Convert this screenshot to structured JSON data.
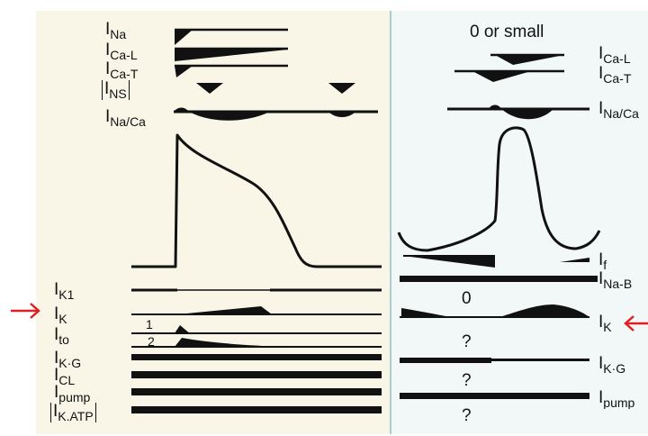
{
  "colors": {
    "ventricular_panel_bg": "#f9f6e7",
    "nodal_panel_bg": "#f2f7f8",
    "divider": "#a9cfd5",
    "trace": "#111111",
    "arrow": "#e02020"
  },
  "ventricular": {
    "currents_top": [
      {
        "id": "na",
        "letter": "I",
        "sub": "Na"
      },
      {
        "id": "cal",
        "letter": "I",
        "sub": "Ca-L"
      },
      {
        "id": "cat",
        "letter": "I",
        "sub": "Ca-T"
      },
      {
        "id": "ns",
        "letter": "I",
        "sub": "NS"
      },
      {
        "id": "naca",
        "letter": "I",
        "sub": "Na/Ca"
      }
    ],
    "currents_bottom": [
      {
        "id": "k1",
        "letter": "I",
        "sub": "K1"
      },
      {
        "id": "k",
        "letter": "I",
        "sub": "K"
      },
      {
        "id": "to",
        "letter": "I",
        "sub": "to",
        "components": [
          "1",
          "2"
        ]
      },
      {
        "id": "kg",
        "letter": "I",
        "sub": "K·G"
      },
      {
        "id": "cl",
        "letter": "I",
        "sub": "CL"
      },
      {
        "id": "pump",
        "letter": "I",
        "sub": "pump"
      },
      {
        "id": "katp",
        "letter": "I",
        "sub": "K.ATP"
      }
    ]
  },
  "nodal": {
    "header_note": "0 or small",
    "currents_top": [
      {
        "id": "cal",
        "letter": "I",
        "sub": "Ca-L"
      },
      {
        "id": "cat",
        "letter": "I",
        "sub": "Ca-T"
      },
      {
        "id": "naca",
        "letter": "I",
        "sub": "Na/Ca"
      }
    ],
    "currents_bottom": [
      {
        "id": "f",
        "letter": "I",
        "sub": "f"
      },
      {
        "id": "nab",
        "letter": "I",
        "sub": "Na-B"
      },
      {
        "id": "k",
        "letter": "I",
        "sub": "K"
      },
      {
        "id": "kg",
        "letter": "I",
        "sub": "K·G"
      },
      {
        "id": "pump",
        "letter": "I",
        "sub": "pump"
      }
    ],
    "value_notes": [
      "0",
      "?",
      "?",
      "?"
    ]
  },
  "highlight": {
    "current": "K",
    "marker": "arrow"
  }
}
